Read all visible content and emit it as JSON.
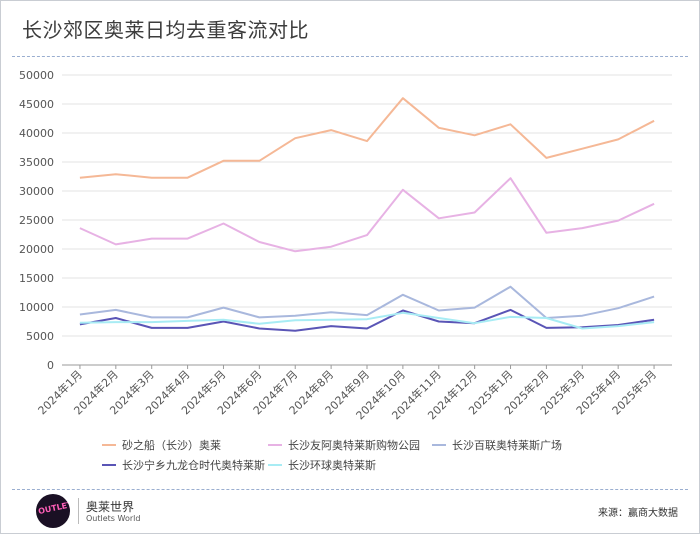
{
  "title": "长沙郊区奥莱日均去重客流对比",
  "footer": {
    "logo_text": "OUTLETS",
    "brand_cn": "奥莱世界",
    "brand_en": "Outlets World",
    "source": "来源：赢商大数据"
  },
  "chart_data": {
    "type": "line",
    "categories": [
      "2024年1月",
      "2024年2月",
      "2024年3月",
      "2024年4月",
      "2024年5月",
      "2024年6月",
      "2024年7月",
      "2024年8月",
      "2024年9月",
      "2024年10月",
      "2024年11月",
      "2024年12月",
      "2025年1月",
      "2025年2月",
      "2025年3月",
      "2025年4月",
      "2025年5月"
    ],
    "ylim": [
      0,
      50000
    ],
    "yticks": [
      0,
      5000,
      10000,
      15000,
      20000,
      25000,
      30000,
      35000,
      40000,
      45000,
      50000
    ],
    "grid": true,
    "legend_position": "bottom",
    "series": [
      {
        "name": "砂之船（长沙）奥莱",
        "color": "#f5b896",
        "values": [
          32300,
          32900,
          32300,
          32300,
          35200,
          35200,
          39100,
          40500,
          38600,
          46000,
          40900,
          39600,
          41500,
          35700,
          37300,
          38900,
          42100
        ]
      },
      {
        "name": "长沙友阿奥特莱斯购物公园",
        "color": "#e7b2e4",
        "values": [
          23600,
          20800,
          21800,
          21800,
          24400,
          21200,
          19600,
          20400,
          22400,
          30200,
          25300,
          26300,
          32200,
          22800,
          23600,
          24900,
          27800
        ]
      },
      {
        "name": "长沙百联奥特莱斯广场",
        "color": "#a9b8dd",
        "values": [
          8700,
          9500,
          8200,
          8200,
          9900,
          8200,
          8500,
          9100,
          8600,
          12100,
          9400,
          9900,
          13500,
          8100,
          8500,
          9800,
          11800
        ]
      },
      {
        "name": "长沙宁乡九龙仓时代奥特莱斯",
        "color": "#5a55b6",
        "values": [
          7000,
          8100,
          6400,
          6400,
          7500,
          6300,
          5900,
          6700,
          6300,
          9400,
          7500,
          7200,
          9500,
          6400,
          6500,
          6900,
          7800
        ]
      },
      {
        "name": "长沙环球奥特莱斯",
        "color": "#a8ecf4",
        "values": [
          7300,
          7400,
          7400,
          7600,
          7800,
          7100,
          7700,
          7800,
          7900,
          9000,
          8100,
          7200,
          8300,
          8100,
          6300,
          6700,
          7400
        ]
      }
    ]
  }
}
